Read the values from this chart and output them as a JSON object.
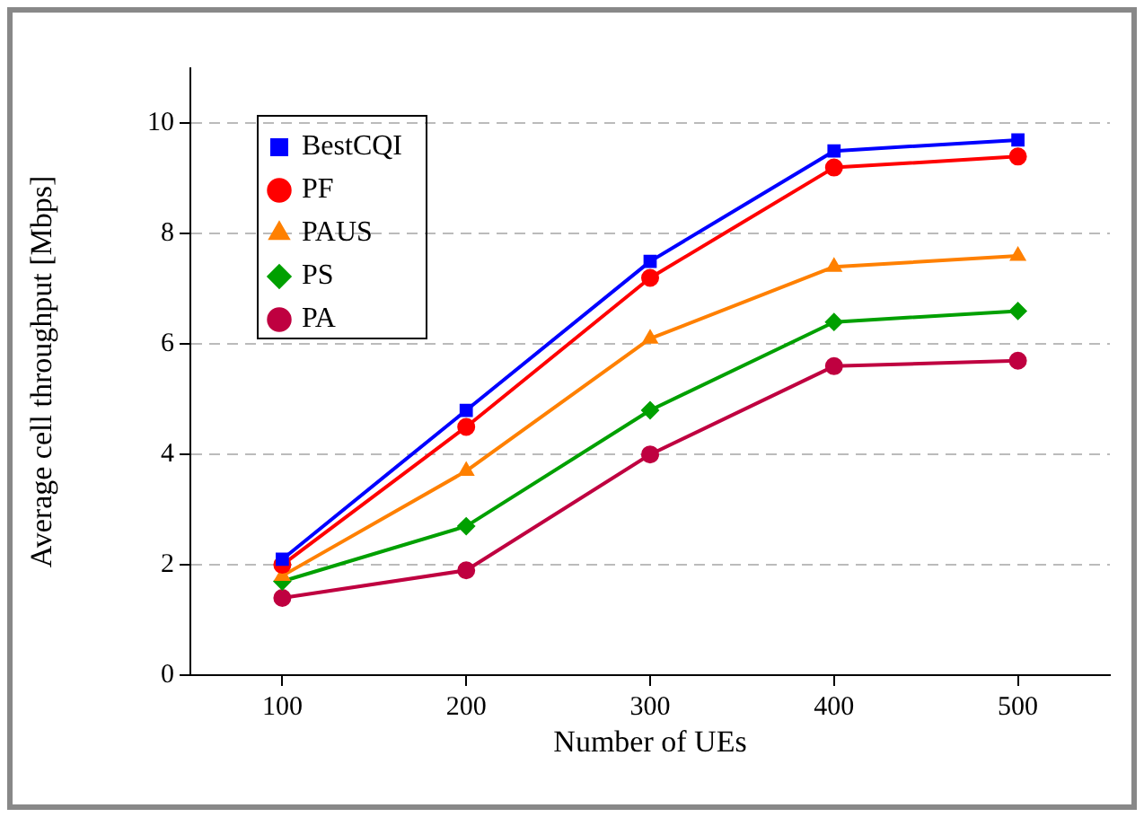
{
  "chart_data": {
    "type": "line",
    "xlabel": "Number of UEs",
    "ylabel": "Average cell throughput [Mbps]",
    "x": [
      100,
      200,
      300,
      400,
      500
    ],
    "series": [
      {
        "name": "BestCQI",
        "color": "#0000ff",
        "marker": "square",
        "values": [
          2.1,
          4.8,
          7.5,
          9.5,
          9.7
        ]
      },
      {
        "name": "PF",
        "color": "#ff0000",
        "marker": "circle",
        "values": [
          2.0,
          4.5,
          7.2,
          9.2,
          9.4
        ]
      },
      {
        "name": "PAUS",
        "color": "#ff8000",
        "marker": "triangle",
        "values": [
          1.8,
          3.7,
          6.1,
          7.4,
          7.6
        ]
      },
      {
        "name": "PS",
        "color": "#00a000",
        "marker": "diamond",
        "values": [
          1.7,
          2.7,
          4.8,
          6.4,
          6.6
        ]
      },
      {
        "name": "PA",
        "color": "#bf0040",
        "marker": "circle",
        "values": [
          1.4,
          1.9,
          4.0,
          5.6,
          5.7
        ]
      }
    ],
    "xlim": [
      50,
      550
    ],
    "xticks": [
      100,
      200,
      300,
      400,
      500
    ],
    "ylim": [
      0,
      11
    ],
    "yticks": [
      0,
      2,
      4,
      6,
      8,
      10
    ],
    "grid": "y",
    "legend": "top left",
    "line_style": "solid"
  }
}
